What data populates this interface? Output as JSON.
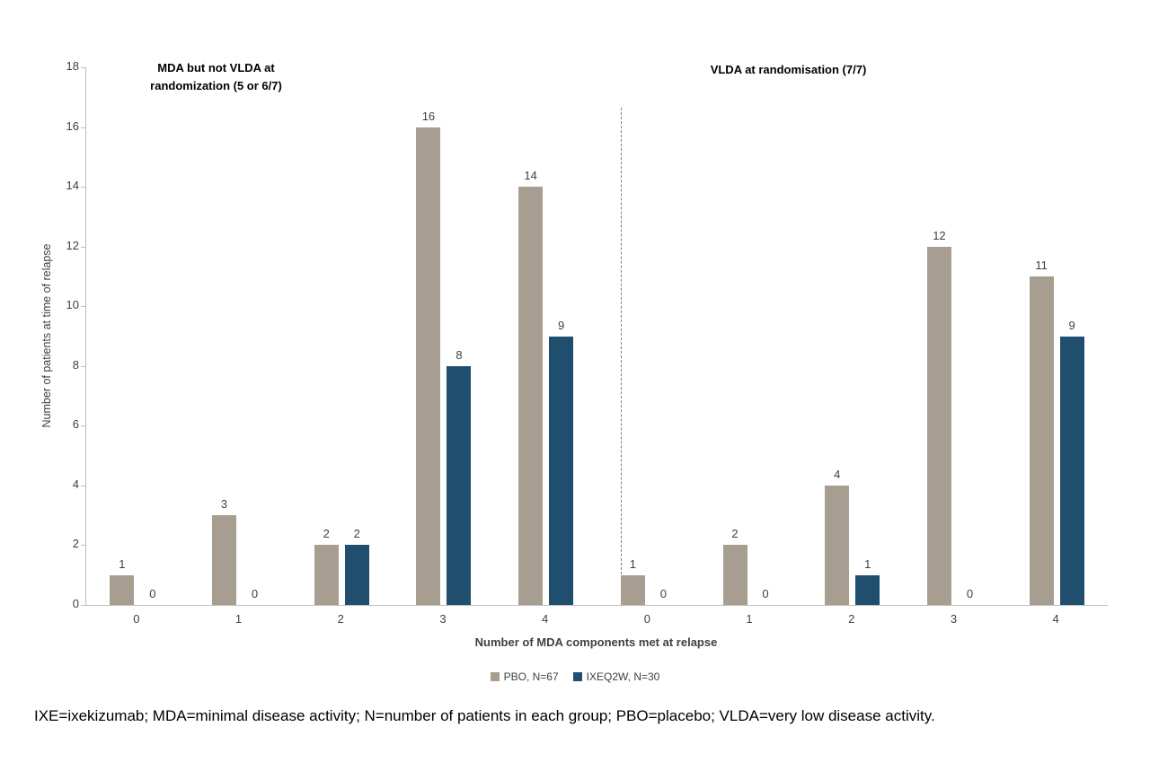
{
  "chart_data": {
    "type": "bar",
    "title": "",
    "xlabel": "Number of MDA components met at relapse",
    "ylabel": "Number of patients at time of relapse",
    "ylim": [
      0,
      18
    ],
    "ytick_step": 2,
    "grid": false,
    "legend_position": "bottom-center",
    "panels": [
      {
        "title_lines": [
          "MDA but not VLDA at",
          "randomization (5 or 6/7)"
        ],
        "categories": [
          "0",
          "1",
          "2",
          "3",
          "4"
        ],
        "series": [
          {
            "name": "PBO, N=67",
            "values": [
              1,
              3,
              2,
              16,
              14
            ]
          },
          {
            "name": "IXEQ2W, N=30",
            "values": [
              0,
              0,
              2,
              8,
              9
            ]
          }
        ]
      },
      {
        "title_lines": [
          "VLDA at randomisation (7/7)"
        ],
        "categories": [
          "0",
          "1",
          "2",
          "3",
          "4"
        ],
        "series": [
          {
            "name": "PBO, N=67",
            "values": [
              1,
              2,
              4,
              12,
              11
            ]
          },
          {
            "name": "IXEQ2W, N=30",
            "values": [
              0,
              0,
              1,
              0,
              9
            ]
          }
        ]
      }
    ],
    "legend": [
      {
        "label": "PBO, N=67",
        "color": "#a79d90"
      },
      {
        "label": "IXEQ2W, N=30",
        "color": "#1f4e6e"
      }
    ],
    "axis_color": "#bfbfbf",
    "divider_style": "dashed"
  },
  "footnote": "IXE=ixekizumab; MDA=minimal disease activity; N=number of patients in each group; PBO=placebo; VLDA=very low disease activity."
}
